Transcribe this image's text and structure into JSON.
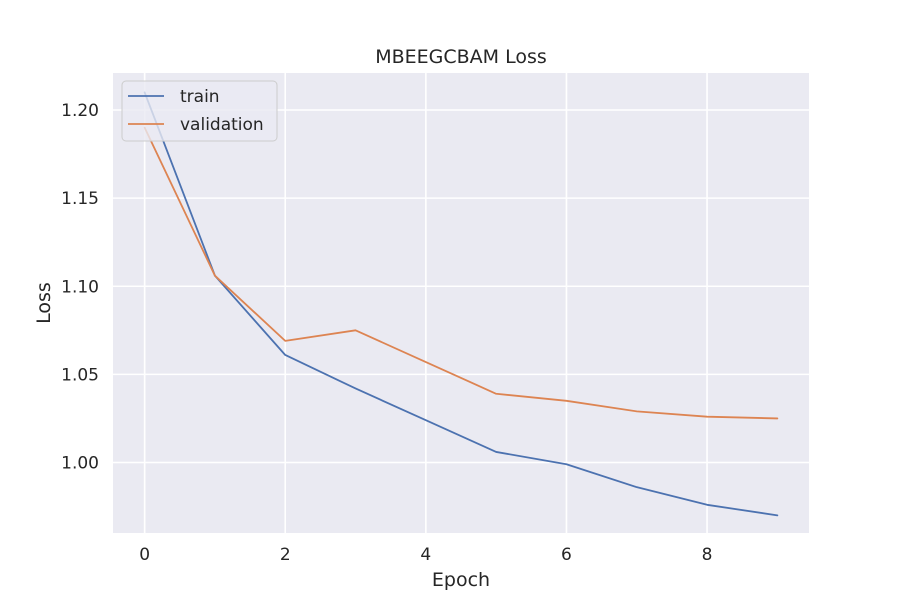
{
  "chart_data": {
    "type": "line",
    "title": "MBEEGCBAM Loss",
    "xlabel": "Epoch",
    "ylabel": "Loss",
    "xlim": [
      -0.45,
      9.45
    ],
    "ylim": [
      0.96,
      1.221
    ],
    "x_ticks": [
      0,
      2,
      4,
      6,
      8
    ],
    "y_ticks": [
      1.0,
      1.05,
      1.1,
      1.15,
      1.2
    ],
    "x_tick_labels": [
      "0",
      "2",
      "4",
      "6",
      "8"
    ],
    "y_tick_labels": [
      "1.00",
      "1.05",
      "1.10",
      "1.15",
      "1.20"
    ],
    "grid": true,
    "legend_position": "top-left",
    "x": [
      0,
      1,
      2,
      3,
      4,
      5,
      6,
      7,
      8,
      9
    ],
    "series": [
      {
        "name": "train",
        "color": "#4c72b0",
        "values": [
          1.21,
          1.106,
          1.061,
          1.042,
          1.024,
          1.006,
          0.999,
          0.986,
          0.976,
          0.97
        ]
      },
      {
        "name": "validation",
        "color": "#dd8452",
        "values": [
          1.19,
          1.106,
          1.069,
          1.075,
          1.057,
          1.039,
          1.035,
          1.029,
          1.026,
          1.025
        ]
      }
    ],
    "colors": {
      "plot_background": "#eaeaf2",
      "grid": "#ffffff",
      "legend_background": "#eaeaf2",
      "legend_border": "#cccccc"
    }
  }
}
